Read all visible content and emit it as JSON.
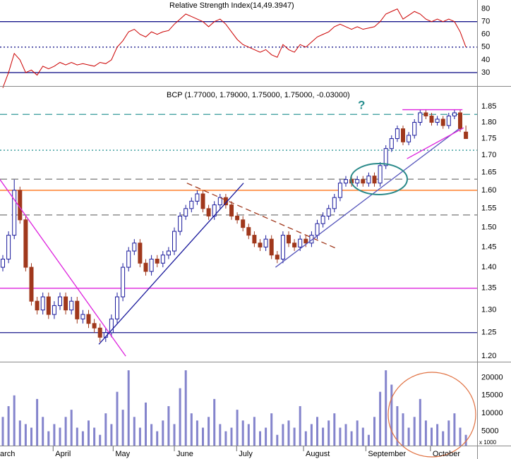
{
  "chart_data": [
    {
      "type": "line",
      "title": "Relative Strength Index(14,49.3947)",
      "color": "#cc0000",
      "values": [
        18,
        30,
        45,
        40,
        30,
        32,
        28,
        35,
        33,
        35,
        38,
        36,
        38,
        36,
        37,
        36,
        35,
        38,
        37,
        40,
        50,
        55,
        62,
        64,
        60,
        58,
        62,
        60,
        62,
        63,
        68,
        72,
        76,
        74,
        72,
        70,
        66,
        70,
        72,
        68,
        62,
        56,
        52,
        50,
        48,
        46,
        48,
        44,
        42,
        52,
        48,
        46,
        52,
        50,
        54,
        58,
        60,
        62,
        66,
        68,
        66,
        64,
        66,
        64,
        65,
        66,
        70,
        76,
        78,
        80,
        72,
        75,
        78,
        76,
        72,
        70,
        72,
        70,
        72,
        70,
        62,
        50
      ],
      "ylim": [
        20,
        87
      ],
      "yticks": [
        80,
        70,
        60,
        50,
        40,
        30
      ],
      "hlines": [
        {
          "value": 70,
          "color": "#1a1a8c",
          "dash": "none"
        },
        {
          "value": 50,
          "color": "#1a1a8c",
          "dash": "2,3"
        },
        {
          "value": 30,
          "color": "#1a1a8c",
          "dash": "none"
        }
      ]
    },
    {
      "type": "candlestick",
      "title": "BCP (1.77000, 1.79000, 1.75000, 1.75000, -0.03000)",
      "annotation": "?",
      "up_color": "#1a1a9c",
      "down_color": "#a0381c",
      "log": true,
      "open": [
        1.4,
        1.42,
        1.48,
        1.6,
        1.52,
        1.4,
        1.32,
        1.3,
        1.33,
        1.29,
        1.31,
        1.33,
        1.3,
        1.32,
        1.28,
        1.29,
        1.27,
        1.26,
        1.24,
        1.25,
        1.28,
        1.33,
        1.4,
        1.44,
        1.46,
        1.41,
        1.39,
        1.42,
        1.41,
        1.43,
        1.44,
        1.49,
        1.53,
        1.55,
        1.57,
        1.59,
        1.55,
        1.53,
        1.56,
        1.58,
        1.56,
        1.53,
        1.52,
        1.5,
        1.48,
        1.46,
        1.45,
        1.47,
        1.43,
        1.42,
        1.48,
        1.46,
        1.45,
        1.47,
        1.46,
        1.48,
        1.51,
        1.53,
        1.55,
        1.58,
        1.62,
        1.63,
        1.62,
        1.63,
        1.62,
        1.64,
        1.62,
        1.67,
        1.72,
        1.75,
        1.78,
        1.74,
        1.76,
        1.8,
        1.83,
        1.82,
        1.8,
        1.81,
        1.79,
        1.82,
        1.83,
        1.77
      ],
      "high": [
        1.43,
        1.49,
        1.63,
        1.61,
        1.53,
        1.41,
        1.33,
        1.34,
        1.34,
        1.32,
        1.34,
        1.34,
        1.33,
        1.33,
        1.3,
        1.3,
        1.28,
        1.27,
        1.26,
        1.29,
        1.34,
        1.41,
        1.45,
        1.47,
        1.47,
        1.42,
        1.43,
        1.43,
        1.44,
        1.45,
        1.5,
        1.54,
        1.56,
        1.58,
        1.6,
        1.6,
        1.56,
        1.57,
        1.59,
        1.59,
        1.57,
        1.54,
        1.53,
        1.51,
        1.49,
        1.47,
        1.48,
        1.48,
        1.44,
        1.49,
        1.49,
        1.47,
        1.48,
        1.48,
        1.49,
        1.52,
        1.54,
        1.56,
        1.59,
        1.63,
        1.64,
        1.64,
        1.64,
        1.64,
        1.65,
        1.65,
        1.68,
        1.73,
        1.76,
        1.79,
        1.79,
        1.77,
        1.81,
        1.84,
        1.84,
        1.83,
        1.82,
        1.82,
        1.83,
        1.84,
        1.84,
        1.79
      ],
      "low": [
        1.39,
        1.41,
        1.47,
        1.51,
        1.39,
        1.31,
        1.29,
        1.29,
        1.28,
        1.28,
        1.3,
        1.29,
        1.29,
        1.27,
        1.27,
        1.26,
        1.25,
        1.23,
        1.23,
        1.24,
        1.27,
        1.32,
        1.39,
        1.43,
        1.4,
        1.38,
        1.38,
        1.4,
        1.4,
        1.42,
        1.43,
        1.48,
        1.52,
        1.54,
        1.56,
        1.54,
        1.52,
        1.52,
        1.55,
        1.55,
        1.52,
        1.51,
        1.49,
        1.47,
        1.45,
        1.44,
        1.44,
        1.42,
        1.41,
        1.41,
        1.45,
        1.44,
        1.44,
        1.45,
        1.45,
        1.47,
        1.5,
        1.52,
        1.54,
        1.57,
        1.61,
        1.61,
        1.61,
        1.61,
        1.61,
        1.61,
        1.61,
        1.66,
        1.71,
        1.74,
        1.73,
        1.73,
        1.75,
        1.79,
        1.81,
        1.79,
        1.79,
        1.78,
        1.78,
        1.81,
        1.77,
        1.75
      ],
      "close": [
        1.42,
        1.48,
        1.6,
        1.52,
        1.4,
        1.32,
        1.3,
        1.33,
        1.29,
        1.31,
        1.33,
        1.3,
        1.32,
        1.28,
        1.29,
        1.27,
        1.26,
        1.24,
        1.25,
        1.28,
        1.33,
        1.4,
        1.44,
        1.46,
        1.41,
        1.39,
        1.42,
        1.41,
        1.43,
        1.44,
        1.49,
        1.53,
        1.55,
        1.57,
        1.59,
        1.55,
        1.53,
        1.56,
        1.58,
        1.56,
        1.53,
        1.52,
        1.5,
        1.48,
        1.46,
        1.45,
        1.47,
        1.43,
        1.42,
        1.48,
        1.46,
        1.45,
        1.47,
        1.46,
        1.48,
        1.51,
        1.53,
        1.55,
        1.58,
        1.62,
        1.63,
        1.62,
        1.63,
        1.62,
        1.64,
        1.62,
        1.67,
        1.72,
        1.75,
        1.78,
        1.74,
        1.76,
        1.8,
        1.83,
        1.82,
        1.8,
        1.81,
        1.79,
        1.82,
        1.83,
        1.78,
        1.75
      ],
      "ylim": [
        1.19,
        1.91
      ],
      "yticks": [
        1.85,
        {
          "value": 1.8,
          "label": "1.80"
        },
        1.75,
        {
          "value": 1.7,
          "label": "1.70"
        },
        1.65,
        {
          "value": 1.6,
          "label": "1.60"
        },
        1.55,
        {
          "value": 1.5,
          "label": "1.50"
        },
        1.45,
        {
          "value": 1.4,
          "label": "1.40"
        },
        1.35,
        {
          "value": 1.3,
          "label": "1.30"
        },
        1.25,
        {
          "value": 1.2,
          "label": "1.20"
        }
      ],
      "hlines": [
        {
          "value": 1.825,
          "color": "#339999",
          "dash": "10,6"
        },
        {
          "value": 1.715,
          "color": "#339999",
          "dash": "2,3"
        },
        {
          "value": 1.631,
          "color": "#777777",
          "dash": "10,6"
        },
        {
          "value": 1.6,
          "color": "#ff6600",
          "dash": "none"
        },
        {
          "value": 1.533,
          "color": "#777777",
          "dash": "10,6"
        },
        {
          "value": 1.35,
          "color": "#dd22dd",
          "dash": "none"
        },
        {
          "value": 1.25,
          "color": "#1a1a8c",
          "dash": "none"
        }
      ],
      "trendlines": [
        {
          "x": [
            -0.5,
            21.5
          ],
          "y": [
            1.63,
            1.2
          ],
          "color": "#dd22dd",
          "dash": "none"
        },
        {
          "x": [
            16.8,
            42.1
          ],
          "y": [
            1.225,
            1.62
          ],
          "color": "#1a1a9c",
          "dash": "none"
        },
        {
          "x": [
            32.2,
            58.1
          ],
          "y": [
            1.62,
            1.448
          ],
          "color": "#a0381c",
          "dash": "8,5"
        },
        {
          "x": [
            47.7,
            79.8
          ],
          "y": [
            1.4,
            1.78
          ],
          "color": "#5555bb",
          "dash": "none"
        },
        {
          "x": [
            69.9,
            80.4
          ],
          "y": [
            1.84,
            1.84
          ],
          "color": "#dd22dd",
          "dash": "none"
        },
        {
          "x": [
            70.7,
            80.6
          ],
          "y": [
            1.69,
            1.783
          ],
          "color": "#dd22dd",
          "dash": "none"
        }
      ]
    },
    {
      "type": "bar",
      "color": "#8484cc",
      "unit_label": "x 1000",
      "values": [
        9000,
        12000,
        15000,
        8000,
        7000,
        6000,
        14000,
        9000,
        5000,
        7000,
        6000,
        9000,
        11000,
        6000,
        5000,
        8000,
        6000,
        4000,
        10000,
        7000,
        16000,
        11000,
        22000,
        9000,
        6000,
        13000,
        7000,
        5000,
        8000,
        12000,
        7000,
        17000,
        22000,
        10000,
        8000,
        6000,
        9000,
        14000,
        7000,
        5000,
        6000,
        11000,
        8000,
        7000,
        9000,
        5000,
        6000,
        10000,
        4000,
        7000,
        8000,
        6000,
        12000,
        5000,
        7000,
        9000,
        6000,
        8000,
        10000,
        6000,
        7000,
        5000,
        8000,
        6000,
        4000,
        9000,
        16000,
        22000,
        18000,
        12000,
        10000,
        6000,
        9000,
        14000,
        8000,
        6000,
        7000,
        5000,
        8000,
        10000,
        6000,
        4000
      ],
      "ylim": [
        1000,
        24000
      ],
      "yticks": [
        20000,
        15000,
        10000,
        5000
      ],
      "xticks": [
        {
          "value": -2,
          "label": "March"
        },
        {
          "value": 8.8,
          "label": "April"
        },
        {
          "value": 19.3,
          "label": "May"
        },
        {
          "value": 30,
          "label": "June"
        },
        {
          "value": 40.9,
          "label": "July"
        },
        {
          "value": 52.6,
          "label": "August"
        },
        {
          "value": 63.5,
          "label": "September"
        },
        {
          "value": 74.8,
          "label": "October"
        }
      ]
    }
  ]
}
